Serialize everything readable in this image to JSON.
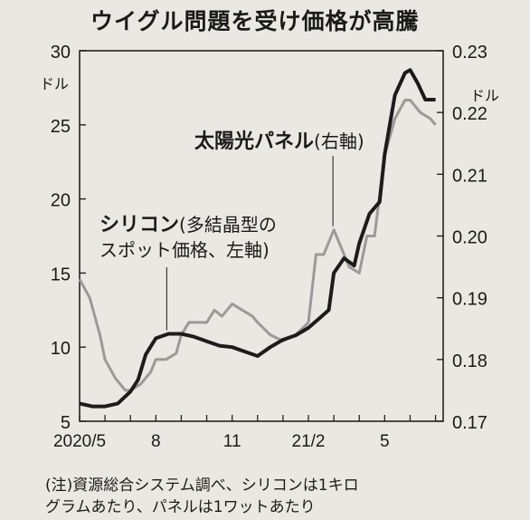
{
  "title": "ウイグル問題を受け価格が高騰",
  "note": {
    "line1": "(注)資源総合システム調べ、シリコンは1キロ",
    "line2": "グラムあたり、パネルは1ワットあたり"
  },
  "colors": {
    "background": "#e9e8e3",
    "silicon": "#1c1c1c",
    "panel": "#9a9a9a",
    "axis": "#222222"
  },
  "chart_data": {
    "type": "line",
    "x": [
      "2020/5",
      "2020/6",
      "2020/7",
      "2020/8",
      "2020/9",
      "2020/10",
      "2020/11",
      "2020/12",
      "2021/1",
      "2021/2",
      "2021/3",
      "2021/4",
      "2021/5",
      "2021/6",
      "2021/7"
    ],
    "x_tick_labels": [
      {
        "x": "2020/5",
        "label": "2020/5"
      },
      {
        "x": "2020/8",
        "label": "8"
      },
      {
        "x": "2020/11",
        "label": "11"
      },
      {
        "x": "2021/2",
        "label": "21/2"
      },
      {
        "x": "2021/5",
        "label": "5"
      }
    ],
    "left_axis": {
      "unit": "ドル",
      "ylim": [
        5,
        30
      ],
      "ticks": [
        5,
        10,
        15,
        20,
        25,
        30
      ]
    },
    "right_axis": {
      "unit": "ドル",
      "ylim": [
        0.17,
        0.23
      ],
      "ticks": [
        0.17,
        0.18,
        0.19,
        0.2,
        0.21,
        0.22,
        0.23
      ]
    },
    "series": [
      {
        "name_main": "シリコン",
        "name_sub1": "(多結晶型の",
        "name_sub2": "スポット価格、左軸)",
        "axis": "left",
        "x": [
          "2020/5",
          "2020/5.5",
          "2020/6",
          "2020/6.5",
          "2020/7",
          "2020/7.3",
          "2020/7.6",
          "2020/8",
          "2020/8.5",
          "2020/9",
          "2020/9.5",
          "2020/10",
          "2020/10.5",
          "2020/11",
          "2020/11.5",
          "2020/12",
          "2020/12.5",
          "2021/1",
          "2021/1.5",
          "2021/2",
          "2021/2.4",
          "2021/2.8",
          "2021/3",
          "2021/3.4",
          "2021/3.8",
          "2021/4",
          "2021/4.4",
          "2021/4.8",
          "2021/5",
          "2021/5.4",
          "2021/5.8",
          "2021/6",
          "2021/6.3",
          "2021/6.6",
          "2021/7"
        ],
        "values": [
          6.2,
          6.0,
          6.0,
          6.2,
          7.0,
          7.8,
          9.5,
          10.6,
          10.9,
          10.9,
          10.7,
          10.4,
          10.1,
          10.0,
          9.7,
          9.4,
          10.0,
          10.5,
          10.8,
          11.3,
          11.9,
          12.5,
          15.0,
          16.0,
          15.5,
          17.0,
          19.0,
          19.8,
          23.0,
          27.0,
          28.5,
          28.7,
          27.8,
          26.7,
          26.7
        ]
      },
      {
        "name_main": "太陽光パネル",
        "name_sub": "(右軸)",
        "axis": "right",
        "x": [
          "2020/5",
          "2020/5.4",
          "2020/5.8",
          "2020/6",
          "2020/6.4",
          "2020/6.8",
          "2020/7",
          "2020/7.4",
          "2020/7.8",
          "2020/8",
          "2020/8.4",
          "2020/8.8",
          "2020/9",
          "2020/9.3",
          "2020/9.6",
          "2020/10",
          "2020/10.3",
          "2020/10.6",
          "2020/11",
          "2020/11.4",
          "2020/11.8",
          "2020/12",
          "2020/12.5",
          "2021/1",
          "2021/1.5",
          "2021/2",
          "2021/2.3",
          "2021/2.6",
          "2021/3",
          "2021/3.3",
          "2021/3.6",
          "2021/4",
          "2021/4.3",
          "2021/4.6",
          "2021/5",
          "2021/5.4",
          "2021/5.8",
          "2021/6",
          "2021/6.4",
          "2021/6.8",
          "2021/7"
        ],
        "values": [
          0.193,
          0.19,
          0.184,
          0.18,
          0.177,
          0.175,
          0.175,
          0.176,
          0.178,
          0.18,
          0.18,
          0.181,
          0.184,
          0.186,
          0.186,
          0.186,
          0.188,
          0.187,
          0.189,
          0.188,
          0.187,
          0.186,
          0.184,
          0.183,
          0.184,
          0.186,
          0.197,
          0.197,
          0.201,
          0.198,
          0.195,
          0.194,
          0.2,
          0.2,
          0.213,
          0.219,
          0.222,
          0.222,
          0.22,
          0.219,
          0.218
        ]
      }
    ]
  }
}
